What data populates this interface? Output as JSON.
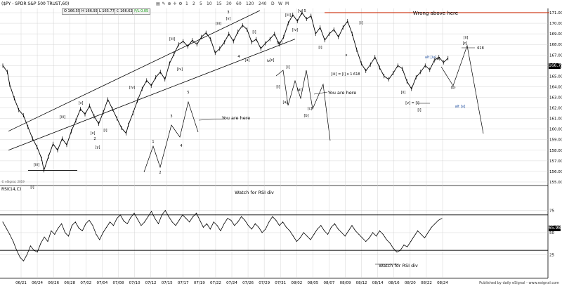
{
  "header": {
    "symbol_title": "($PY - SPDR S&P 500 TRUST,60)",
    "quote_values": [
      "O 166.55",
      "H 166.93",
      "L 165.77",
      "C 166.62",
      "P/L 0.05"
    ],
    "quote_colors": [
      "#000000",
      "#000000",
      "#000000",
      "#000000",
      "#009900"
    ],
    "timeframes": [
      "1",
      "2",
      "5",
      "10",
      "15",
      "30",
      "60",
      "120",
      "240",
      "D",
      "W",
      "M"
    ],
    "icons": [
      "chart-type-icon",
      "draw-icon",
      "zoom-icon",
      "crosshair-icon",
      "settings-icon"
    ]
  },
  "rsi_title": "RSI(14,C)",
  "price_tag": "166.71",
  "rsi_tag": "65.98",
  "watermark": "© eSignal, 2019",
  "credit": "Published by daily eSignal - www.esignal.com",
  "colors": {
    "price": "#000000",
    "trendline": "#000000",
    "wrong_line": "#d04020",
    "alt_label": "#1f4fa0",
    "grid": "#cccccc",
    "rsi_band": "#000000"
  },
  "chart_data": [
    {
      "type": "line",
      "title": "",
      "x_ticks": [
        "06/21",
        "06/24",
        "06/26",
        "06/28",
        "07/02",
        "07/04",
        "07/08",
        "07/10",
        "07/12",
        "07/15",
        "07/17",
        "07/19",
        "07/22",
        "07/24",
        "07/26",
        "07/29",
        "07/31",
        "08/02",
        "08/05",
        "08/07",
        "08/09",
        "08/12",
        "08/14",
        "08/16",
        "08/20",
        "08/22",
        "08/24"
      ],
      "y_ticks": [
        155.0,
        156.0,
        157.0,
        158.0,
        159.0,
        160.0,
        161.0,
        162.0,
        163.0,
        164.0,
        165.0,
        166.0,
        167.0,
        168.0,
        169.0,
        170.0,
        171.0
      ],
      "ylim": [
        154.8,
        171.4
      ],
      "grid": true,
      "series": [
        {
          "name": "",
          "points": [
            [
              0,
              166.0
            ],
            [
              2,
              165.4
            ],
            [
              3,
              164.2
            ],
            [
              5,
              162.9
            ],
            [
              7,
              161.8
            ],
            [
              9,
              161.3
            ],
            [
              11,
              160.2
            ],
            [
              13,
              159.1
            ],
            [
              15,
              158.3
            ],
            [
              17,
              157.2
            ],
            [
              18,
              156.1
            ],
            [
              20,
              157.4
            ],
            [
              22,
              158.6
            ],
            [
              24,
              158.0
            ],
            [
              26,
              159.1
            ],
            [
              28,
              158.5
            ],
            [
              30,
              159.8
            ],
            [
              32,
              160.8
            ],
            [
              34,
              161.9
            ],
            [
              36,
              161.4
            ],
            [
              38,
              162.2
            ],
            [
              40,
              161.2
            ],
            [
              42,
              160.5
            ],
            [
              44,
              161.6
            ],
            [
              46,
              162.8
            ],
            [
              48,
              161.9
            ],
            [
              50,
              161.0
            ],
            [
              52,
              160.1
            ],
            [
              54,
              159.6
            ],
            [
              55,
              160.4
            ],
            [
              57,
              161.5
            ],
            [
              59,
              162.7
            ],
            [
              61,
              163.8
            ],
            [
              63,
              164.6
            ],
            [
              65,
              164.1
            ],
            [
              67,
              164.9
            ],
            [
              69,
              165.4
            ],
            [
              71,
              164.7
            ],
            [
              73,
              166.2
            ],
            [
              75,
              167.1
            ],
            [
              77,
              168.0
            ],
            [
              79,
              168.3
            ],
            [
              81,
              167.8
            ],
            [
              83,
              168.4
            ],
            [
              85,
              168.0
            ],
            [
              87,
              168.7
            ],
            [
              89,
              169.1
            ],
            [
              91,
              168.5
            ],
            [
              93,
              167.2
            ],
            [
              95,
              167.6
            ],
            [
              97,
              168.2
            ],
            [
              99,
              169.0
            ],
            [
              101,
              168.3
            ],
            [
              103,
              169.2
            ],
            [
              105,
              169.8
            ],
            [
              107,
              169.4
            ],
            [
              109,
              168.2
            ],
            [
              111,
              168.5
            ],
            [
              113,
              167.6
            ],
            [
              115,
              168.1
            ],
            [
              117,
              168.5
            ],
            [
              119,
              169.0
            ],
            [
              121,
              168.0
            ],
            [
              123,
              168.7
            ],
            [
              125,
              170.0
            ],
            [
              127,
              170.8
            ],
            [
              129,
              170.2
            ],
            [
              131,
              171.0
            ],
            [
              133,
              170.4
            ],
            [
              135,
              170.7
            ],
            [
              137,
              169.0
            ],
            [
              139,
              169.6
            ],
            [
              141,
              168.4
            ],
            [
              143,
              169.0
            ],
            [
              145,
              169.4
            ],
            [
              147,
              168.7
            ],
            [
              149,
              169.6
            ],
            [
              151,
              170.2
            ],
            [
              153,
              169.0
            ],
            [
              155,
              167.5
            ],
            [
              157,
              166.2
            ],
            [
              159,
              165.5
            ],
            [
              161,
              166.1
            ],
            [
              163,
              166.8
            ],
            [
              165,
              165.8
            ],
            [
              167,
              165.0
            ],
            [
              169,
              164.7
            ],
            [
              171,
              165.3
            ],
            [
              173,
              166.0
            ],
            [
              175,
              165.7
            ],
            [
              177,
              164.5
            ],
            [
              179,
              163.8
            ],
            [
              181,
              164.9
            ],
            [
              183,
              165.4
            ],
            [
              185,
              166.0
            ],
            [
              187,
              165.6
            ],
            [
              189,
              166.5
            ],
            [
              191,
              166.8
            ],
            [
              193,
              166.3
            ],
            [
              195,
              166.7
            ]
          ]
        }
      ],
      "annotations": [
        "Wrong above here",
        "You are here",
        "You are here",
        "[iii] = [i] x 1.618",
        "[v] = [i]",
        "alt [iv]",
        "alt [v]",
        "618",
        "1",
        "2",
        "3",
        "4",
        "5",
        "[a]",
        "[b]",
        "[c]",
        "[i]",
        "[ii]",
        "[iii]",
        "[iv]",
        "[v]",
        "(a)",
        "(b)",
        "x"
      ]
    },
    {
      "type": "line",
      "title": "RSI(14,C)",
      "y_ticks": [
        25,
        50,
        75
      ],
      "ylim": [
        0,
        100
      ],
      "bands": [
        30,
        70
      ],
      "grid": true,
      "series": [
        {
          "name": "",
          "values": [
            62,
            55,
            48,
            40,
            30,
            22,
            18,
            25,
            35,
            30,
            28,
            38,
            45,
            40,
            52,
            48,
            55,
            60,
            50,
            46,
            58,
            62,
            55,
            52,
            60,
            64,
            58,
            48,
            42,
            50,
            56,
            62,
            58,
            66,
            70,
            63,
            60,
            67,
            72,
            65,
            58,
            62,
            68,
            74,
            66,
            60,
            70,
            75,
            68,
            62,
            58,
            64,
            70,
            66,
            62,
            68,
            72,
            64,
            56,
            60,
            54,
            62,
            58,
            52,
            60,
            66,
            64,
            58,
            62,
            68,
            64,
            58,
            54,
            60,
            56,
            50,
            54,
            62,
            68,
            64,
            58,
            62,
            56,
            52,
            46,
            40,
            44,
            50,
            46,
            42,
            48,
            54,
            58,
            52,
            48,
            56,
            60,
            54,
            50,
            46,
            52,
            58,
            52,
            48,
            44,
            40,
            44,
            50,
            46,
            52,
            48,
            42,
            38,
            32,
            28,
            30,
            36,
            34,
            40,
            46,
            52,
            48,
            44,
            50,
            56,
            60,
            64,
            66
          ]
        }
      ],
      "annotations": [
        "Watch for RSI div",
        "Watch for RSI div"
      ]
    }
  ]
}
